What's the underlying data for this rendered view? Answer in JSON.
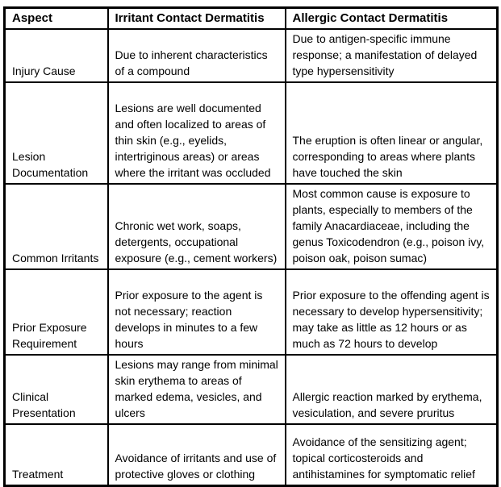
{
  "table": {
    "headers": [
      "Aspect",
      "Irritant Contact Dermatitis",
      "Allergic Contact Dermatitis"
    ],
    "rows": [
      {
        "aspect": "Injury Cause",
        "irritant": "Due to inherent characteristics of a compound",
        "allergic": "Due to antigen-specific immune response; a manifestation of delayed type hypersensitivity"
      },
      {
        "aspect": "Lesion Documentation",
        "irritant": "Lesions are well documented and often localized to areas of thin skin (e.g., eyelids, intertriginous areas) or areas where the irritant was occluded",
        "allergic": "The eruption is often linear or angular, corresponding to areas where plants have touched the skin"
      },
      {
        "aspect": "Common Irritants",
        "irritant": "Chronic wet work, soaps, detergents, occupational exposure (e.g., cement workers)",
        "allergic": "Most common cause is exposure to plants, especially to members of the family Anacardiaceae, including the genus Toxicodendron (e.g., poison ivy, poison oak, poison sumac)"
      },
      {
        "aspect": "Prior Exposure Requirement",
        "irritant": "Prior exposure to the agent is not necessary; reaction develops in minutes to a few hours",
        "allergic": "Prior exposure to the offending agent is necessary to develop hypersensitivity; may take as little as 12 hours or as much as 72 hours to develop"
      },
      {
        "aspect": "Clinical Presentation",
        "irritant": "Lesions may range from minimal skin erythema to areas of marked edema, vesicles, and ulcers",
        "allergic": "Allergic reaction marked by erythema, vesiculation, and severe pruritus"
      },
      {
        "aspect": "Treatment",
        "irritant": "Avoidance of irritants and use of protective gloves or clothing",
        "allergic": "Avoidance of the sensitizing agent; topical corticosteroids and antihistamines for symptomatic relief"
      }
    ]
  },
  "colors": {
    "border": "#000000",
    "text": "#000000",
    "background": "#ffffff"
  }
}
